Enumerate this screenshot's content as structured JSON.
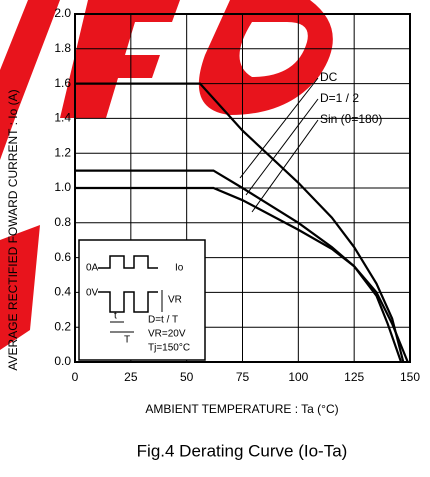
{
  "chart_data": {
    "type": "line",
    "caption": "Fig.4 Derating Curve (Io-Ta)",
    "x_label": "AMBIENT TEMPERATURE : Ta (°C)",
    "y_label": "AVERAGE RECTIFIED FOWARD CURRENT : Io (A)",
    "xlim": [
      0,
      150
    ],
    "xticks": [
      0,
      25,
      50,
      75,
      100,
      125,
      150
    ],
    "ylim": [
      0,
      2.0
    ],
    "yticks": [
      {
        "value": 0,
        "label": "0.0"
      },
      0.2,
      0.4,
      0.6,
      0.8,
      {
        "value": 1,
        "label": "1.0"
      },
      1.2,
      1.4,
      1.6,
      1.8,
      {
        "value": 2,
        "label": "2.0"
      }
    ],
    "grid": true,
    "series": [
      {
        "name": "DC",
        "color": "#000000",
        "x": [
          0,
          56,
          75,
          100,
          115,
          125,
          135,
          142,
          147
        ],
        "values": [
          1.6,
          1.6,
          1.33,
          1.03,
          0.83,
          0.66,
          0.45,
          0.25,
          0
        ]
      },
      {
        "name": "D=1 / 2",
        "color": "#000000",
        "x": [
          0,
          62,
          75,
          100,
          115,
          125,
          135,
          142,
          149
        ],
        "values": [
          1.1,
          1.1,
          1.0,
          0.8,
          0.66,
          0.55,
          0.4,
          0.22,
          0
        ]
      },
      {
        "name": "Sin (θ=180)",
        "color": "#000000",
        "x": [
          0,
          62,
          75,
          100,
          115,
          125,
          135,
          140,
          146
        ],
        "values": [
          1.0,
          1.0,
          0.93,
          0.76,
          0.65,
          0.55,
          0.38,
          0.22,
          0
        ]
      }
    ],
    "inset": [
      "0A",
      "Io",
      "0V",
      "VR",
      "D=t / T",
      "VR=20V",
      "Tj=150°C",
      "t",
      "T"
    ]
  }
}
